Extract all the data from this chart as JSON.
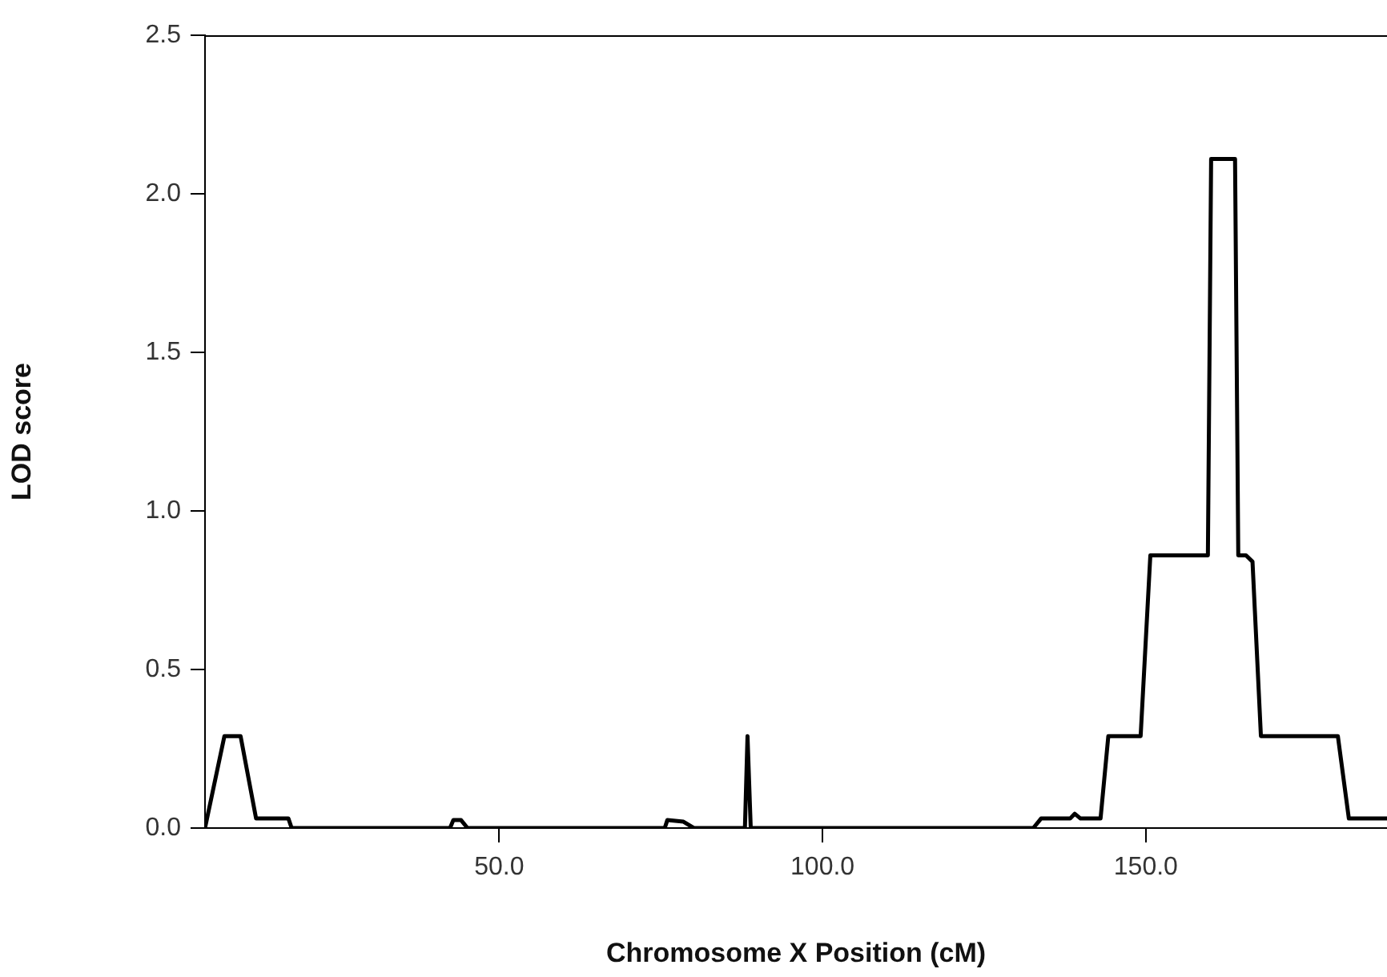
{
  "chart_data": {
    "type": "line",
    "xlabel": "Chromosome X Position (cM)",
    "ylabel": "LOD score",
    "x": [
      4.5,
      7.5,
      10.0,
      12.4,
      17.4,
      17.9,
      42.4,
      42.9,
      44.1,
      45.1,
      75.6,
      76.0,
      78.5,
      80.1,
      88.0,
      88.4,
      88.9,
      132.6,
      133.8,
      138.3,
      139.0,
      139.9,
      143.0,
      144.2,
      149.2,
      150.7,
      159.6,
      160.1,
      163.8,
      164.3,
      165.5,
      166.5,
      167.8,
      179.7,
      181.4,
      187.3
    ],
    "series": [
      {
        "color": "#000000",
        "values": [
          0,
          0.29,
          0.29,
          0.03,
          0.03,
          0,
          0,
          0.025,
          0.025,
          0,
          0,
          0.025,
          0.02,
          0,
          0,
          0.29,
          0,
          0,
          0.03,
          0.03,
          0.045,
          0.03,
          0.03,
          0.29,
          0.29,
          0.86,
          0.86,
          2.11,
          2.11,
          0.86,
          0.86,
          0.84,
          0.29,
          0.29,
          0.03,
          0.03
        ]
      }
    ],
    "xlim": [
      4.5,
      187.3
    ],
    "ylim": [
      0,
      2.5
    ],
    "xticks": [
      {
        "value": 50,
        "label": "50.0"
      },
      {
        "value": 100,
        "label": "100.0"
      },
      {
        "value": 150,
        "label": "150.0"
      }
    ],
    "yticks": [
      {
        "value": 0,
        "label": "0.0"
      },
      {
        "value": 0.5,
        "label": "0.5"
      },
      {
        "value": 1,
        "label": "1.0"
      },
      {
        "value": 1.5,
        "label": "1.5"
      },
      {
        "value": 2,
        "label": "2.0"
      },
      {
        "value": 2.5,
        "label": "2.5"
      }
    ],
    "grid": false,
    "legend": false,
    "marker": "none",
    "line_style": "solid"
  }
}
